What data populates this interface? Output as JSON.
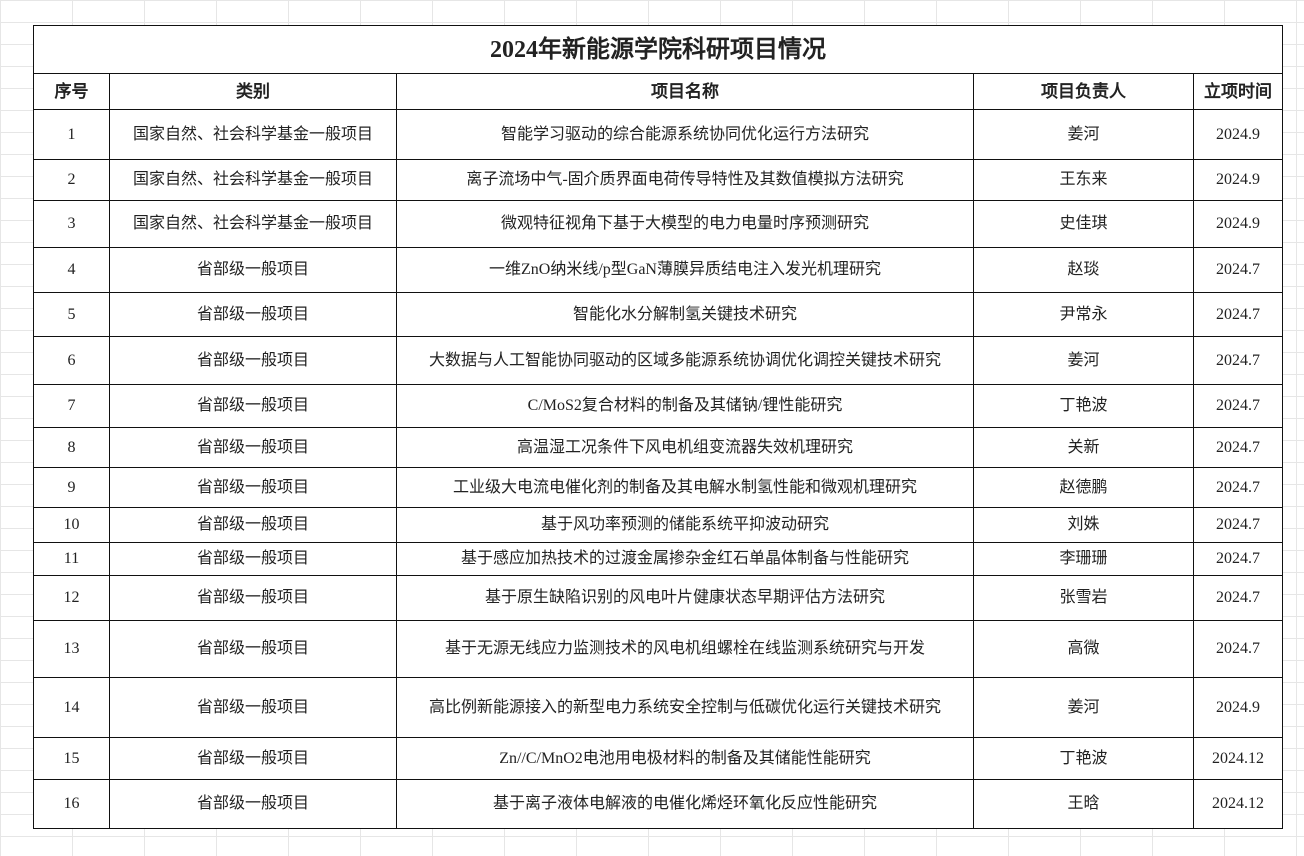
{
  "title": "2024年新能源学院科研项目情况",
  "headers": [
    "序号",
    "类别",
    "项目名称",
    "项目负责人",
    "立项时间"
  ],
  "rows": [
    [
      "1",
      "国家自然、社会科学基金一般项目",
      "智能学习驱动的综合能源系统协同优化运行方法研究",
      "姜河",
      "2024.9"
    ],
    [
      "2",
      "国家自然、社会科学基金一般项目",
      "离子流场中气-固介质界面电荷传导特性及其数值模拟方法研究",
      "王东来",
      "2024.9"
    ],
    [
      "3",
      "国家自然、社会科学基金一般项目",
      "微观特征视角下基于大模型的电力电量时序预测研究",
      "史佳琪",
      "2024.9"
    ],
    [
      "4",
      "省部级一般项目",
      "一维ZnO纳米线/p型GaN薄膜异质结电注入发光机理研究",
      "赵琰",
      "2024.7"
    ],
    [
      "5",
      "省部级一般项目",
      "智能化水分解制氢关键技术研究",
      "尹常永",
      "2024.7"
    ],
    [
      "6",
      "省部级一般项目",
      "大数据与人工智能协同驱动的区域多能源系统协调优化调控关键技术研究",
      "姜河",
      "2024.7"
    ],
    [
      "7",
      "省部级一般项目",
      "C/MoS2复合材料的制备及其储钠/锂性能研究",
      "丁艳波",
      "2024.7"
    ],
    [
      "8",
      "省部级一般项目",
      "高温湿工况条件下风电机组变流器失效机理研究",
      "关新",
      "2024.7"
    ],
    [
      "9",
      "省部级一般项目",
      "工业级大电流电催化剂的制备及其电解水制氢性能和微观机理研究",
      "赵德鹏",
      "2024.7"
    ],
    [
      "10",
      "省部级一般项目",
      "基于风功率预测的储能系统平抑波动研究",
      "刘姝",
      "2024.7"
    ],
    [
      "11",
      "省部级一般项目",
      "基于感应加热技术的过渡金属掺杂金红石单晶体制备与性能研究",
      "李珊珊",
      "2024.7"
    ],
    [
      "12",
      "省部级一般项目",
      "基于原生缺陷识别的风电叶片健康状态早期评估方法研究",
      "张雪岩",
      "2024.7"
    ],
    [
      "13",
      "省部级一般项目",
      "基于无源无线应力监测技术的风电机组螺栓在线监测系统研究与开发",
      "高微",
      "2024.7"
    ],
    [
      "14",
      "省部级一般项目",
      "高比例新能源接入的新型电力系统安全控制与低碳优化运行关键技术研究",
      "姜河",
      "2024.9"
    ],
    [
      "15",
      "省部级一般项目",
      "Zn//C/MnO2电池用电极材料的制备及其储能性能研究",
      "丁艳波",
      "2024.12"
    ],
    [
      "16",
      "省部级一般项目",
      "基于离子液体电解液的电催化烯烃环氧化反应性能研究",
      "王晗",
      "2024.12"
    ]
  ]
}
